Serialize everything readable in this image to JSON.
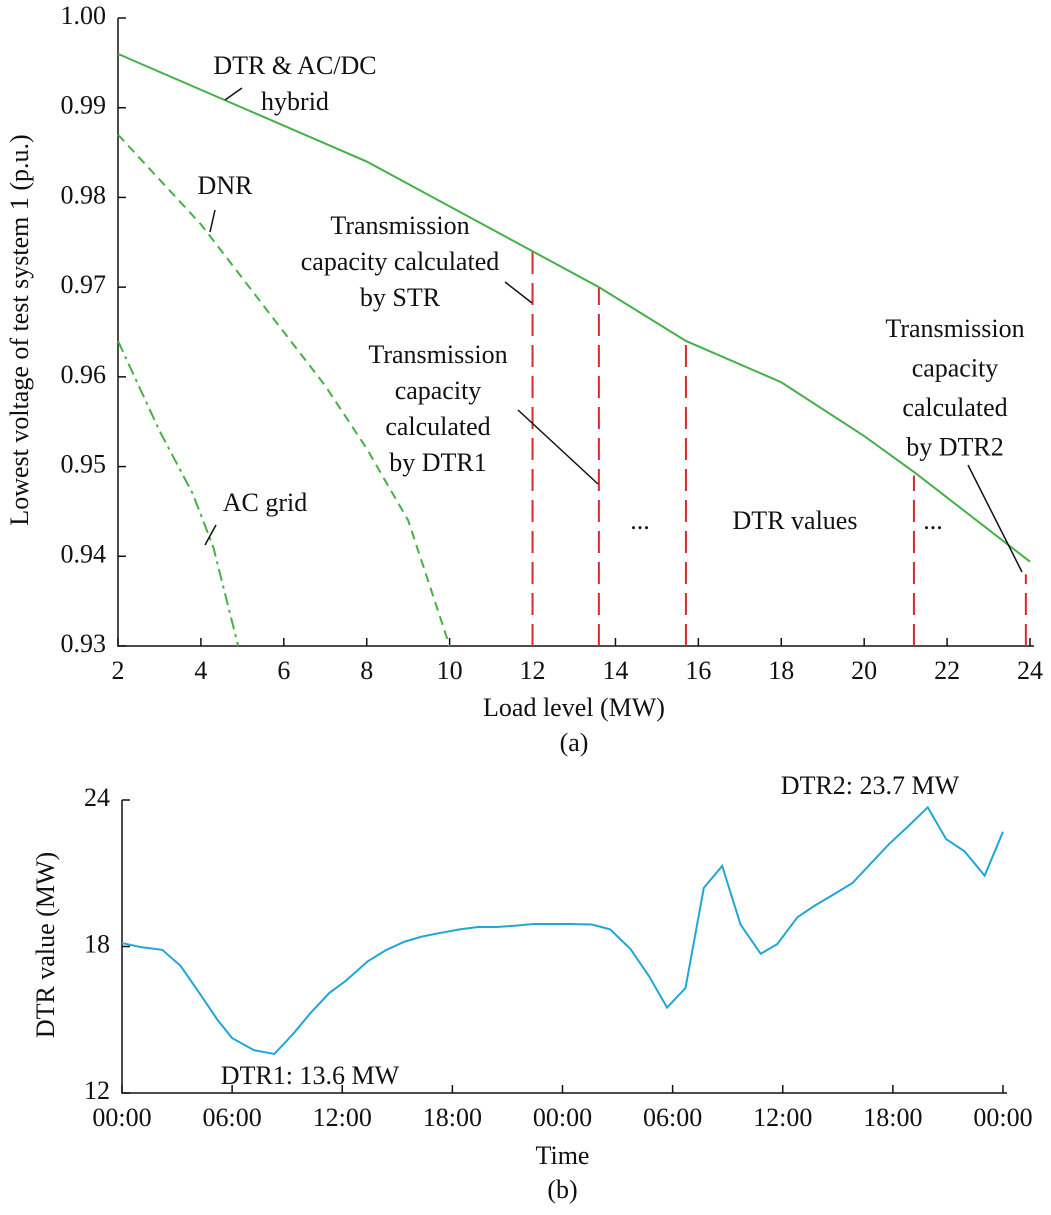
{
  "chart_data": [
    {
      "type": "line",
      "xlabel": "Load level (MW)",
      "ylabel": "Lowest voltage of test system 1 (p.u.)",
      "caption": "(a)",
      "xlim": [
        2,
        24
      ],
      "ylim": [
        0.93,
        1
      ],
      "xticks": [
        2,
        4,
        6,
        8,
        10,
        12,
        14,
        16,
        18,
        20,
        22,
        24
      ],
      "yticks": [
        0.93,
        0.94,
        0.95,
        0.96,
        0.97,
        0.98,
        0.99,
        {
          "value": 1,
          "label": "1.00"
        }
      ],
      "series": [
        {
          "name": "DTR & AC/DC hybrid",
          "color": "#45b045",
          "dash": "solid",
          "x": [
            2,
            8,
            12,
            13.6,
            15.7,
            18,
            20,
            21.2,
            24
          ],
          "values": [
            0.996,
            0.984,
            0.974,
            0.97,
            0.964,
            0.9594,
            0.9534,
            0.9494,
            0.9394
          ]
        },
        {
          "name": "DNR",
          "color": "#45b045",
          "dash": "dashed",
          "x": [
            2,
            3,
            4,
            5,
            6,
            7,
            8,
            9,
            10
          ],
          "values": [
            0.987,
            0.982,
            0.977,
            0.971,
            0.965,
            0.959,
            0.952,
            0.944,
            0.93
          ]
        },
        {
          "name": "AC grid",
          "color": "#45b045",
          "dash": "dashdot",
          "x": [
            2,
            3,
            3.8,
            4.3,
            4.9
          ],
          "values": [
            0.964,
            0.954,
            0.947,
            0.941,
            0.93
          ]
        }
      ],
      "vlines": {
        "color": "#d62a2f",
        "x": [
          12,
          13.6,
          15.7,
          21.2,
          23.9
        ],
        "top": [
          0.974,
          0.97,
          0.964,
          0.949,
          0.938
        ]
      },
      "annotations": [
        [
          "DTR & AC/DC",
          "hybrid"
        ],
        [
          "DNR"
        ],
        [
          "AC grid"
        ],
        [
          "Transmission",
          "capacity calculated",
          "by STR"
        ],
        [
          "Transmission",
          "capacity",
          "calculated",
          "by DTR1"
        ],
        [
          "..."
        ],
        [
          "DTR values"
        ],
        [
          "..."
        ],
        [
          "Transmission",
          "capacity",
          "calculated",
          "by DTR2"
        ]
      ]
    },
    {
      "type": "line",
      "xlabel": "Time",
      "ylabel": "DTR value (MW)",
      "caption": "(b)",
      "xlim": [
        0,
        48
      ],
      "ylim": [
        12,
        24
      ],
      "xticks": [
        {
          "value": 0,
          "label": "00:00"
        },
        {
          "value": 6,
          "label": "06:00"
        },
        {
          "value": 12,
          "label": "12:00"
        },
        {
          "value": 18,
          "label": "18:00"
        },
        {
          "value": 24,
          "label": "00:00"
        },
        {
          "value": 30,
          "label": "06:00"
        },
        {
          "value": 36,
          "label": "12:00"
        },
        {
          "value": 42,
          "label": "18:00"
        },
        {
          "value": 48,
          "label": "00:00"
        }
      ],
      "yticks": [
        12,
        18,
        24
      ],
      "x": [
        0,
        1,
        2.2,
        3.2,
        4.3,
        5.2,
        6,
        7.2,
        8.3,
        9.3,
        10.3,
        11.3,
        12.2,
        13.4,
        14.4,
        15.4,
        16.3,
        17.3,
        18.4,
        19.4,
        20.4,
        21.4,
        22.4,
        23.4,
        24.4,
        25.6,
        26.6,
        27.7,
        28.7,
        29.7,
        30.7,
        31.7,
        32.7,
        33.7,
        34.8,
        35.7,
        36.8,
        37.8,
        38.7,
        39.8,
        40.8,
        41.8,
        42.8,
        43.9,
        44.9,
        45.9,
        47,
        48
      ],
      "series": [
        {
          "name": "DTR value",
          "color": "#22a6d6",
          "dash": "solid",
          "values": [
            18.14,
            17.98,
            17.86,
            17.2,
            16.0,
            15.0,
            14.25,
            13.75,
            13.6,
            14.4,
            15.3,
            16.1,
            16.6,
            17.4,
            17.86,
            18.2,
            18.4,
            18.55,
            18.7,
            18.8,
            18.8,
            18.85,
            18.92,
            18.92,
            18.92,
            18.9,
            18.7,
            17.9,
            16.8,
            15.5,
            16.3,
            20.4,
            21.3,
            18.9,
            17.7,
            18.1,
            19.2,
            19.7,
            20.1,
            20.6,
            21.4,
            22.2,
            22.9,
            23.7,
            22.4,
            21.9,
            20.9,
            22.7
          ]
        }
      ],
      "annotations": [
        [
          "DTR2: 23.7 MW"
        ],
        [
          "DTR1: 13.6 MW"
        ]
      ]
    }
  ]
}
